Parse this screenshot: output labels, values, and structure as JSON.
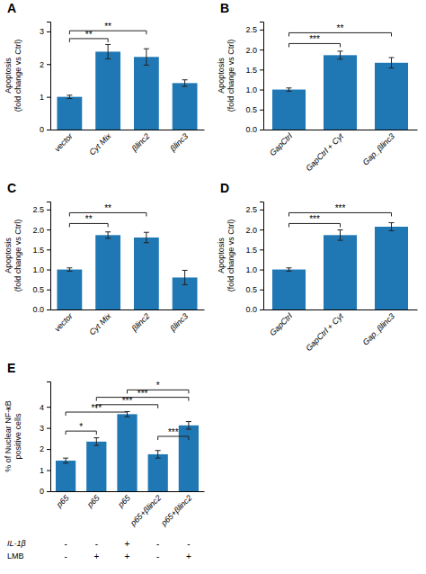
{
  "chart_data": [
    {
      "type": "bar",
      "title": "A",
      "categories": [
        "vector",
        "Cyt Mix",
        "βlinc2",
        "βlinc3"
      ],
      "values": [
        1.0,
        2.38,
        2.22,
        1.42
      ],
      "errors": [
        0.05,
        0.22,
        0.25,
        0.1
      ],
      "y_label": "Apoptosis\n(fold change vs Ctrl)",
      "ylim": [
        0,
        3.3
      ],
      "yticks": [
        0,
        1,
        2,
        3
      ],
      "annotations": [
        {
          "x1": 0,
          "x2": 1,
          "y": 2.78,
          "text": "**"
        },
        {
          "x1": 0,
          "x2": 2,
          "y": 3.02,
          "text": "**"
        }
      ]
    },
    {
      "type": "bar",
      "title": "B",
      "categories": [
        "GapCtrl",
        "GapCtrl + Cyt",
        "Gap_βlinc3"
      ],
      "values": [
        1.0,
        1.86,
        1.67
      ],
      "errors": [
        0.04,
        0.1,
        0.13
      ],
      "y_label": "Apoptosis\n(fold change vs Ctrl)",
      "ylim": [
        0,
        2.7
      ],
      "yticks": [
        {
          "value": 0.0,
          "label": "0.0"
        },
        0.5,
        {
          "value": 1.0,
          "label": "1.0"
        },
        1.5,
        {
          "value": 2.0,
          "label": "2.0"
        },
        2.5
      ],
      "annotations": [
        {
          "x1": 0,
          "x2": 1,
          "y": 2.15,
          "text": "***"
        },
        {
          "x1": 0,
          "x2": 2,
          "y": 2.42,
          "text": "**"
        }
      ]
    },
    {
      "type": "bar",
      "title": "C",
      "categories": [
        "vector",
        "Cyt Mix",
        "βlinc2",
        "βlinc3"
      ],
      "values": [
        1.0,
        1.86,
        1.8,
        0.8
      ],
      "errors": [
        0.04,
        0.08,
        0.13,
        0.18
      ],
      "y_label": "Apoptosis\n(fold change vs Ctrl)",
      "ylim": [
        0,
        2.7
      ],
      "yticks": [
        {
          "value": 0,
          "label": "0.0"
        },
        0.5,
        {
          "value": 1.0,
          "label": "1.0"
        },
        1.5,
        {
          "value": 2.0,
          "label": "2.0"
        },
        2.5
      ],
      "annotations": [
        {
          "x1": 0,
          "x2": 1,
          "y": 2.15,
          "text": "**"
        },
        {
          "x1": 0,
          "x2": 2,
          "y": 2.42,
          "text": "**"
        }
      ]
    },
    {
      "type": "bar",
      "title": "D",
      "categories": [
        "GapCtrl",
        "GapCtrl + Cyt",
        "Gap_βlinc3"
      ],
      "values": [
        1.0,
        1.86,
        2.07
      ],
      "errors": [
        0.04,
        0.13,
        0.1
      ],
      "y_label": "Apoptosis\n(fold change vs Ctrl)",
      "ylim": [
        0,
        2.7
      ],
      "yticks": [
        {
          "value": 0,
          "label": "0.0"
        },
        0.5,
        {
          "value": 1.0,
          "label": "1.0"
        },
        1.5,
        {
          "value": 2.0,
          "label": "2.0"
        },
        2.5
      ],
      "annotations": [
        {
          "x1": 0,
          "x2": 1,
          "y": 2.15,
          "text": "***"
        },
        {
          "x1": 0,
          "x2": 2,
          "y": 2.42,
          "text": "***"
        }
      ]
    },
    {
      "type": "bar",
      "title": "E",
      "categories": [
        "p65",
        "p65",
        "p65",
        "p65+βlinc2",
        "p65+βlinc2"
      ],
      "values": [
        1.45,
        2.35,
        3.65,
        1.75,
        3.12
      ],
      "errors": [
        0.12,
        0.18,
        0.12,
        0.18,
        0.18
      ],
      "y_label": "% of Nuclear NF-κB\npositive cells",
      "ylim": [
        0,
        5.2
      ],
      "yticks": [
        0,
        1,
        2,
        3,
        4
      ],
      "annotations": [
        {
          "x1": 0,
          "x2": 1,
          "y": 2.85,
          "text": "*"
        },
        {
          "x1": 0,
          "x2": 2,
          "y": 3.75,
          "text": "***"
        },
        {
          "x1": 1,
          "x2": 3,
          "y": 4.1,
          "text": "***"
        },
        {
          "x1": 1,
          "x2": 4,
          "y": 4.45,
          "text": "***"
        },
        {
          "x1": 2,
          "x2": 4,
          "y": 4.8,
          "text": "*"
        },
        {
          "x1": 3,
          "x2": 4,
          "y": 2.6,
          "text": "***"
        }
      ],
      "rows": [
        {
          "label": "IL-1β",
          "values": [
            "-",
            "-",
            "+",
            "-",
            "-"
          ]
        },
        {
          "label": "LMB",
          "values": [
            "-",
            "+",
            "+",
            "-",
            "+"
          ]
        }
      ]
    }
  ]
}
